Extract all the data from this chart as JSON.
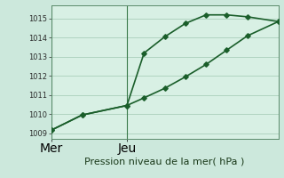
{
  "xlabel": "Pression niveau de la mer( hPa )",
  "background_color": "#cce8dc",
  "plot_bg_color": "#d8f0e4",
  "grid_color": "#b0d4c0",
  "line_color": "#1a5e2a",
  "spine_color": "#3a7a4a",
  "ylim": [
    1008.7,
    1015.7
  ],
  "yticks": [
    1009,
    1010,
    1011,
    1012,
    1013,
    1014,
    1015
  ],
  "xlim": [
    0,
    11
  ],
  "mer_x": 0,
  "jeu_x": 3.67,
  "line1_x": [
    0,
    1.5,
    3.67,
    4.5,
    5.5,
    6.5,
    7.5,
    8.5,
    9.5,
    11
  ],
  "line1_y": [
    1009.15,
    1009.95,
    1010.45,
    1013.2,
    1014.05,
    1014.75,
    1015.2,
    1015.2,
    1015.1,
    1014.85
  ],
  "line2_x": [
    0,
    1.5,
    3.67,
    4.5,
    5.5,
    6.5,
    7.5,
    8.5,
    9.5,
    11
  ],
  "line2_y": [
    1009.15,
    1009.95,
    1010.45,
    1010.85,
    1011.35,
    1011.95,
    1012.6,
    1013.35,
    1014.1,
    1014.85
  ],
  "marker": "D",
  "marker_size": 2.8,
  "line_width": 1.2,
  "ytick_fontsize": 6,
  "xtick_fontsize": 7,
  "xlabel_fontsize": 8
}
